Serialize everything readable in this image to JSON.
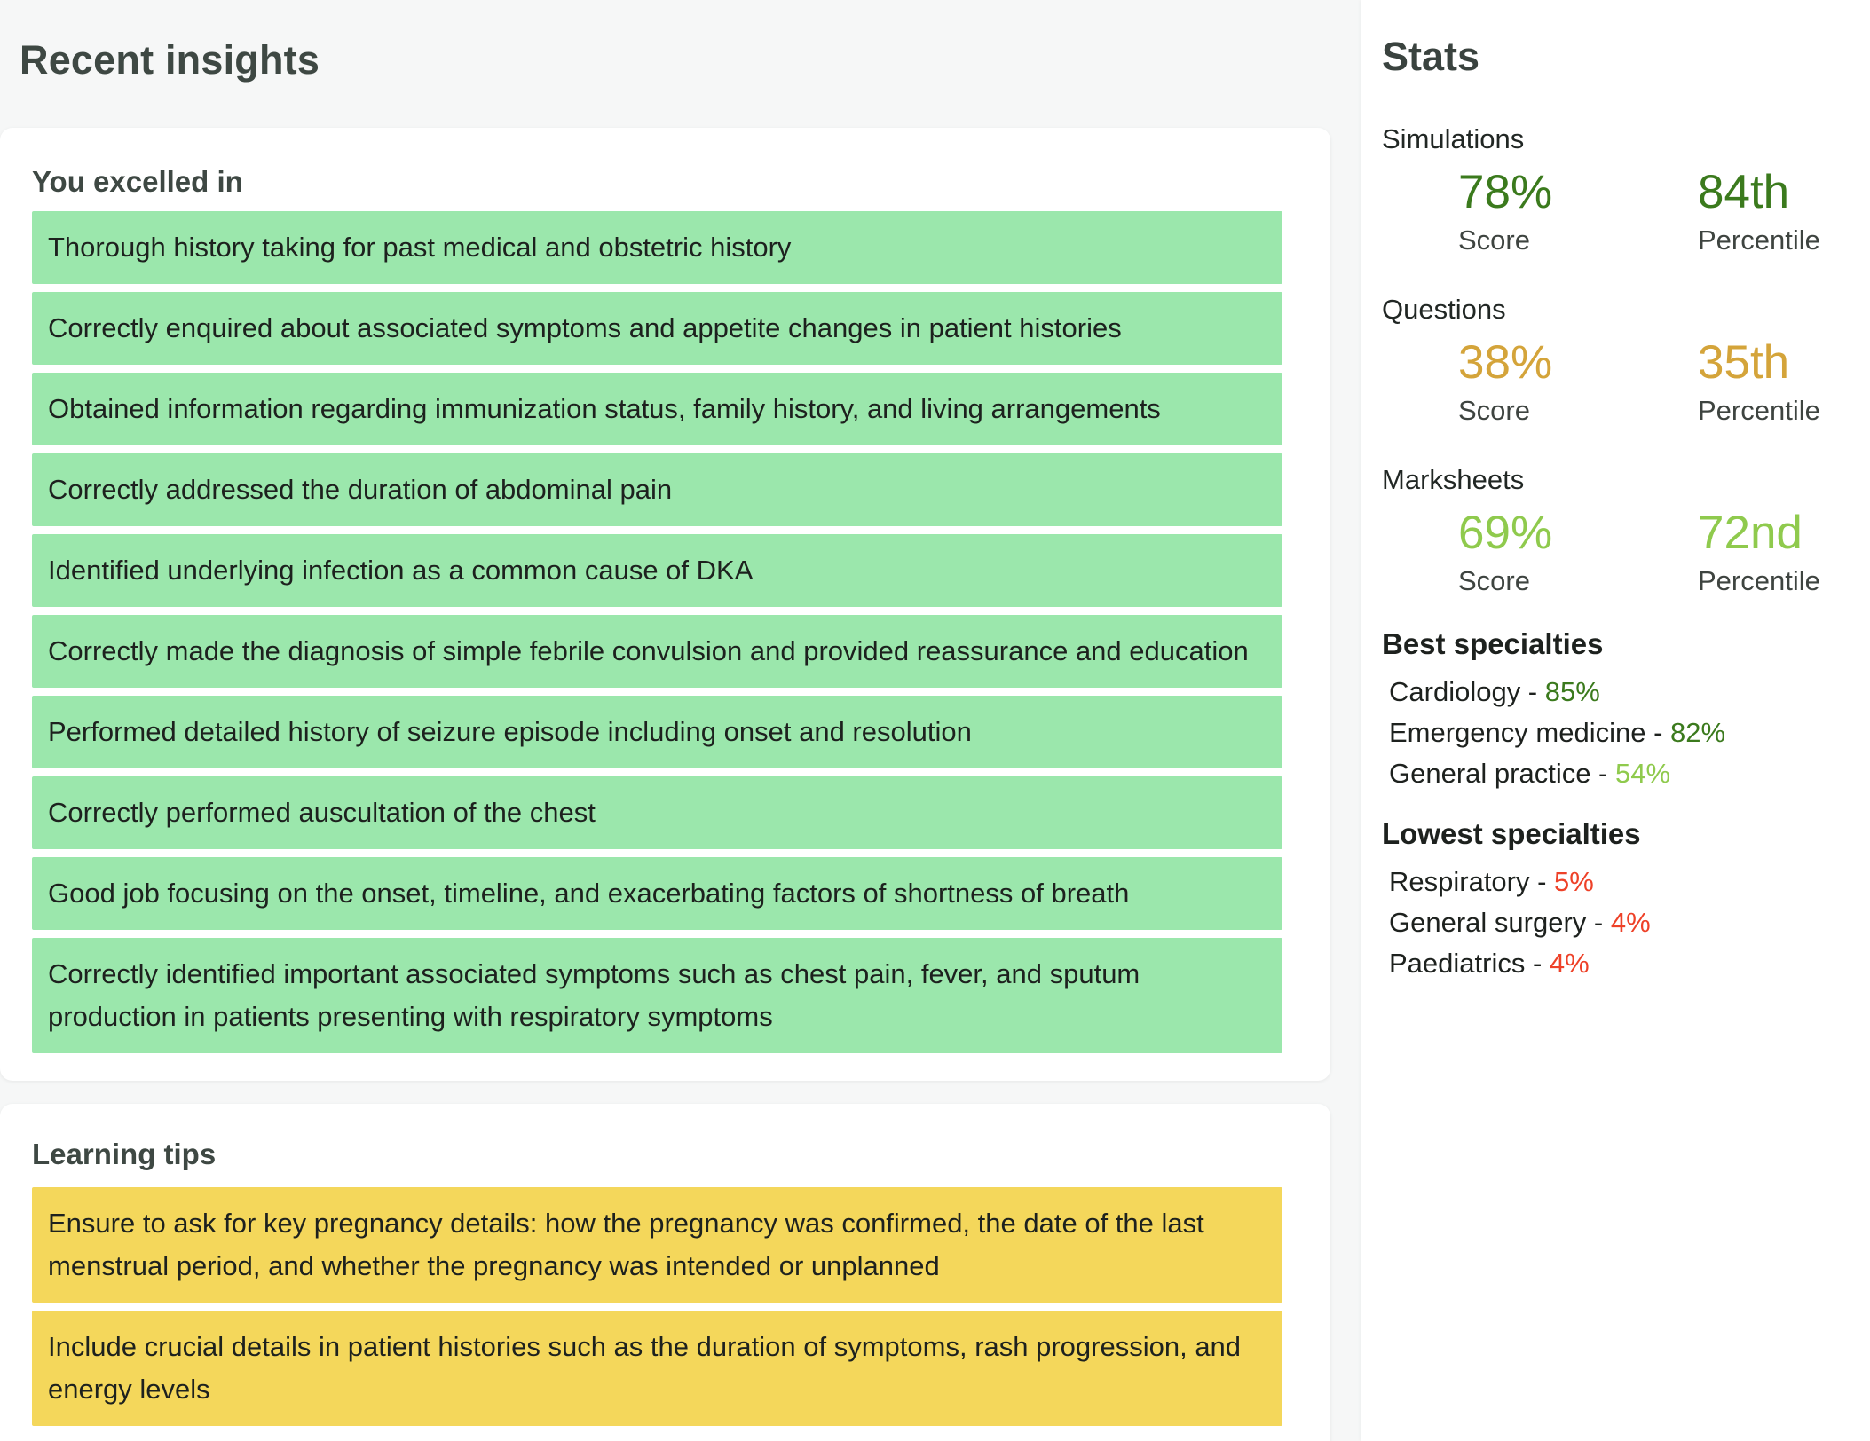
{
  "page": {
    "title": "Recent insights"
  },
  "excelled": {
    "heading": "You excelled in",
    "items": [
      "Thorough history taking for past medical and obstetric history",
      "Correctly enquired about associated symptoms and appetite changes in patient histories",
      "Obtained information regarding immunization status, family history, and living arrangements",
      "Correctly addressed the duration of abdominal pain",
      "Identified underlying infection as a common cause of DKA",
      "Correctly made the diagnosis of simple febrile convulsion and provided reassurance and education",
      "Performed detailed history of seizure episode including onset and resolution",
      "Correctly performed auscultation of the chest",
      "Good job focusing on the onset, timeline, and exacerbating factors of shortness of breath",
      "Correctly identified important associated symptoms such as chest pain, fever, and sputum production in patients presenting with respiratory symptoms"
    ]
  },
  "tips": {
    "heading": "Learning tips",
    "items": [
      "Ensure to ask for key pregnancy details: how the pregnancy was confirmed, the date of the last menstrual period, and whether the pregnancy was intended or unplanned",
      "Include crucial details in patient histories such as the duration of symptoms, rash progression, and energy levels"
    ]
  },
  "stats": {
    "heading": "Stats",
    "groups": [
      {
        "label": "Simulations",
        "score": "78%",
        "score_label": "Score",
        "percentile": "84th",
        "percentile_label": "Percentile",
        "color": "#3b7a1d"
      },
      {
        "label": "Questions",
        "score": "38%",
        "score_label": "Score",
        "percentile": "35th",
        "percentile_label": "Percentile",
        "color": "#d4a43a"
      },
      {
        "label": "Marksheets",
        "score": "69%",
        "score_label": "Score",
        "percentile": "72nd",
        "percentile_label": "Percentile",
        "color": "#8fca4d"
      }
    ],
    "best": {
      "heading": "Best specialties",
      "items": [
        {
          "name": "Cardiology",
          "value": "85%",
          "color": "#3b7a1d"
        },
        {
          "name": "Emergency medicine",
          "value": "82%",
          "color": "#3b7a1d"
        },
        {
          "name": "General practice",
          "value": "54%",
          "color": "#8fca4d"
        }
      ]
    },
    "lowest": {
      "heading": "Lowest specialties",
      "items": [
        {
          "name": "Respiratory",
          "value": "5%",
          "color": "#ee4128"
        },
        {
          "name": "General surgery",
          "value": "4%",
          "color": "#ee4128"
        },
        {
          "name": "Paediatrics",
          "value": "4%",
          "color": "#ee4128"
        }
      ]
    }
  },
  "colors": {
    "page_background": "#f6f7f7",
    "card_background": "#ffffff",
    "excelled_row_background": "#9be7ac",
    "tip_row_background": "#f4d75b",
    "positive_value": "#3b7a1d",
    "warning_value": "#d4a43a",
    "mid_value": "#8fca4d",
    "negative_value": "#ee4128"
  }
}
